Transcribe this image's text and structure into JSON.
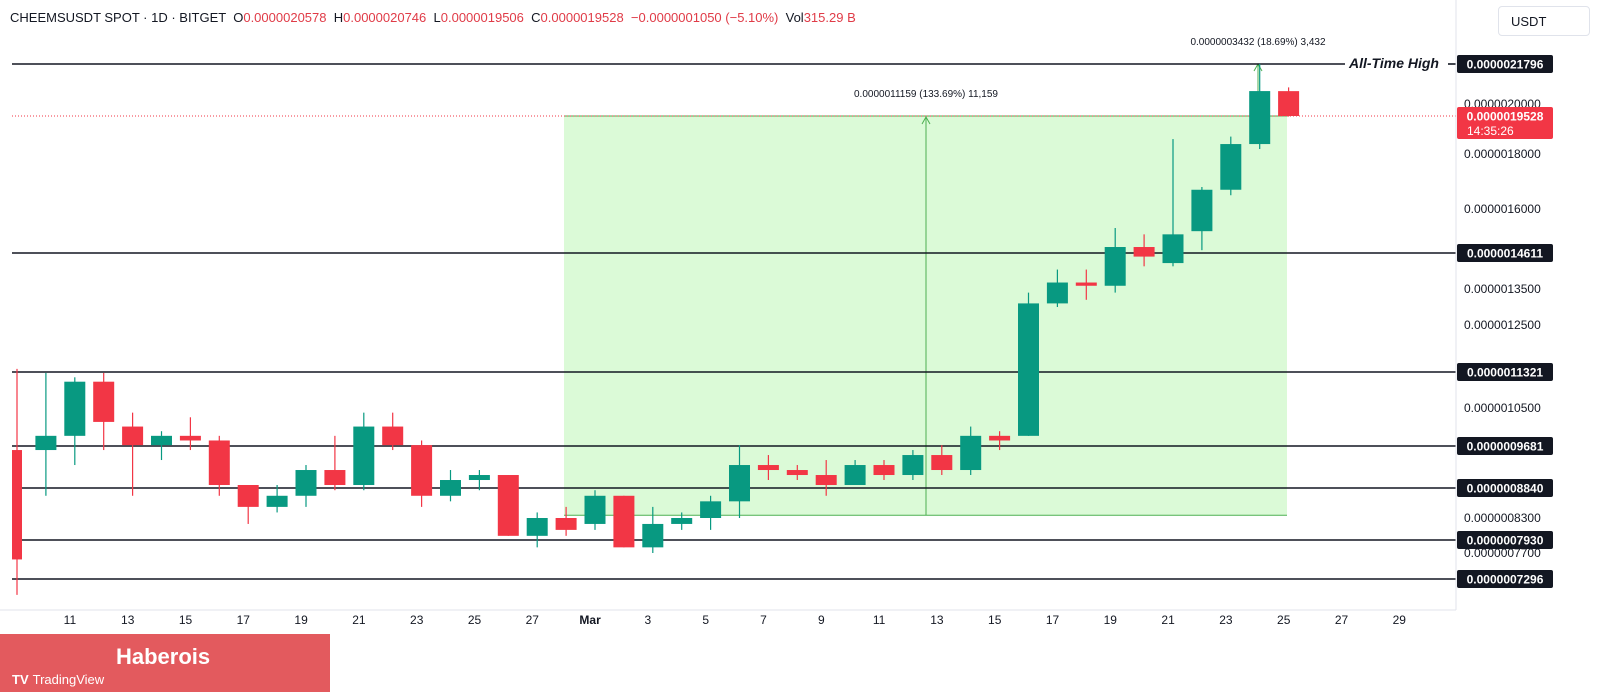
{
  "header": {
    "symbol": "CHEEMSUSDT SPOT · 1D · BITGET",
    "o_label": "O",
    "o_value": "0.0000020578",
    "h_label": "H",
    "h_value": "0.0000020746",
    "l_label": "L",
    "l_value": "0.0000019506",
    "c_label": "C",
    "c_value": "0.0000019528",
    "change": "−0.0000001050 (−5.10%)",
    "vol_label": "Vol",
    "vol_value": "315.29 B"
  },
  "unit_button": "USDT",
  "brand": {
    "name": "Haberois",
    "logo_text": "TradingView",
    "logo_mark": "TV"
  },
  "colors": {
    "up": "#089981",
    "down": "#f23645",
    "range_fill": "#d5f9d0",
    "range_line": "#4caf50"
  },
  "chart_data": {
    "type": "candlestick",
    "x_ticks": [
      "11",
      "13",
      "15",
      "17",
      "19",
      "21",
      "23",
      "25",
      "27",
      "Mar",
      "3",
      "5",
      "7",
      "9",
      "11",
      "13",
      "15",
      "17",
      "19",
      "21",
      "23",
      "25",
      "27",
      "29"
    ],
    "y_ticks": [
      "0.0000020000",
      "0.0000018000",
      "0.0000016000",
      "0.0000013500",
      "0.0000012500",
      "0.0000010500",
      "0.0000008300",
      "0.0000007700"
    ],
    "candles": [
      {
        "o": 9.6e-07,
        "h": 1.14e-06,
        "l": 7.1e-07,
        "c": 7.6e-07
      },
      {
        "o": 9.6e-07,
        "h": 1.13e-06,
        "l": 8.7e-07,
        "c": 9.9e-07
      },
      {
        "o": 9.9e-07,
        "h": 1.12e-06,
        "l": 9.3e-07,
        "c": 1.11e-06
      },
      {
        "o": 1.11e-06,
        "h": 1.13e-06,
        "l": 9.6e-07,
        "c": 1.02e-06
      },
      {
        "o": 1.01e-06,
        "h": 1.04e-06,
        "l": 8.7e-07,
        "c": 9.7e-07
      },
      {
        "o": 9.7e-07,
        "h": 1e-06,
        "l": 9.4e-07,
        "c": 9.9e-07
      },
      {
        "o": 9.9e-07,
        "h": 1.03e-06,
        "l": 9.6e-07,
        "c": 9.8e-07
      },
      {
        "o": 9.8e-07,
        "h": 9.9e-07,
        "l": 8.7e-07,
        "c": 8.9e-07
      },
      {
        "o": 8.9e-07,
        "h": 8.9e-07,
        "l": 8.2e-07,
        "c": 8.5e-07
      },
      {
        "o": 8.5e-07,
        "h": 8.9e-07,
        "l": 8.4e-07,
        "c": 8.7e-07
      },
      {
        "o": 8.7e-07,
        "h": 9.3e-07,
        "l": 8.5e-07,
        "c": 9.2e-07
      },
      {
        "o": 9.2e-07,
        "h": 9.9e-07,
        "l": 8.8e-07,
        "c": 8.9e-07
      },
      {
        "o": 8.9e-07,
        "h": 1.04e-06,
        "l": 8.8e-07,
        "c": 1.01e-06
      },
      {
        "o": 1.01e-06,
        "h": 1.04e-06,
        "l": 9.6e-07,
        "c": 9.7e-07
      },
      {
        "o": 9.7e-07,
        "h": 9.8e-07,
        "l": 8.5e-07,
        "c": 8.7e-07
      },
      {
        "o": 8.7e-07,
        "h": 9.2e-07,
        "l": 8.6e-07,
        "c": 9e-07
      },
      {
        "o": 9e-07,
        "h": 9.2e-07,
        "l": 8.8e-07,
        "c": 9.1e-07
      },
      {
        "o": 9.1e-07,
        "h": 9.1e-07,
        "l": 8e-07,
        "c": 8e-07
      },
      {
        "o": 8e-07,
        "h": 8.4e-07,
        "l": 7.8e-07,
        "c": 8.3e-07
      },
      {
        "o": 8.3e-07,
        "h": 8.5e-07,
        "l": 8e-07,
        "c": 8.1e-07
      },
      {
        "o": 8.2e-07,
        "h": 8.8e-07,
        "l": 8.1e-07,
        "c": 8.7e-07
      },
      {
        "o": 8.7e-07,
        "h": 8.7e-07,
        "l": 7.8e-07,
        "c": 7.8e-07
      },
      {
        "o": 7.8e-07,
        "h": 8.5e-07,
        "l": 7.7e-07,
        "c": 8.2e-07
      },
      {
        "o": 8.2e-07,
        "h": 8.4e-07,
        "l": 8.1e-07,
        "c": 8.3e-07
      },
      {
        "o": 8.3e-07,
        "h": 8.7e-07,
        "l": 8.1e-07,
        "c": 8.6e-07
      },
      {
        "o": 8.6e-07,
        "h": 9.7e-07,
        "l": 8.3e-07,
        "c": 9.3e-07
      },
      {
        "o": 9.3e-07,
        "h": 9.5e-07,
        "l": 9e-07,
        "c": 9.2e-07
      },
      {
        "o": 9.2e-07,
        "h": 9.3e-07,
        "l": 9e-07,
        "c": 9.1e-07
      },
      {
        "o": 9.1e-07,
        "h": 9.4e-07,
        "l": 8.7e-07,
        "c": 8.9e-07
      },
      {
        "o": 8.9e-07,
        "h": 9.4e-07,
        "l": 8.9e-07,
        "c": 9.3e-07
      },
      {
        "o": 9.3e-07,
        "h": 9.4e-07,
        "l": 9e-07,
        "c": 9.1e-07
      },
      {
        "o": 9.1e-07,
        "h": 9.6e-07,
        "l": 9e-07,
        "c": 9.5e-07
      },
      {
        "o": 9.5e-07,
        "h": 9.7e-07,
        "l": 9.1e-07,
        "c": 9.2e-07
      },
      {
        "o": 9.2e-07,
        "h": 1.01e-06,
        "l": 9.1e-07,
        "c": 9.9e-07
      },
      {
        "o": 9.9e-07,
        "h": 1e-06,
        "l": 9.6e-07,
        "c": 9.8e-07
      },
      {
        "o": 9.9e-07,
        "h": 1.34e-06,
        "l": 9.9e-07,
        "c": 1.31e-06
      },
      {
        "o": 1.31e-06,
        "h": 1.41e-06,
        "l": 1.3e-06,
        "c": 1.37e-06
      },
      {
        "o": 1.37e-06,
        "h": 1.41e-06,
        "l": 1.32e-06,
        "c": 1.36e-06
      },
      {
        "o": 1.36e-06,
        "h": 1.54e-06,
        "l": 1.34e-06,
        "c": 1.48e-06
      },
      {
        "o": 1.48e-06,
        "h": 1.52e-06,
        "l": 1.42e-06,
        "c": 1.45e-06
      },
      {
        "o": 1.43e-06,
        "h": 1.86e-06,
        "l": 1.42e-06,
        "c": 1.52e-06
      },
      {
        "o": 1.53e-06,
        "h": 1.68e-06,
        "l": 1.47e-06,
        "c": 1.67e-06
      },
      {
        "o": 1.67e-06,
        "h": 1.87e-06,
        "l": 1.65e-06,
        "c": 1.84e-06
      },
      {
        "o": 1.84e-06,
        "h": 2.18e-06,
        "l": 1.82e-06,
        "c": 2.058e-06
      },
      {
        "o": 2.0578e-06,
        "h": 2.0746e-06,
        "l": 1.9506e-06,
        "c": 1.9528e-06
      }
    ],
    "levels": [
      {
        "price": 2.1796e-06,
        "label": "0.0000021796"
      },
      {
        "price": 1.4611e-06,
        "label": "0.0000014611"
      },
      {
        "price": 1.1321e-06,
        "label": "0.0000011321"
      },
      {
        "price": 9.681e-07,
        "label": "0.0000009681"
      },
      {
        "price": 8.84e-07,
        "label": "0.0000008840"
      },
      {
        "price": 7.93e-07,
        "label": "0.0000007930"
      },
      {
        "price": 7.296e-07,
        "label": "0.0000007296"
      }
    ],
    "annotations": {
      "ath_label": "All-Time High",
      "range_main": "0.0000011159 (133.69%) 11,159",
      "range_top": "0.0000003432 (18.69%) 3,432"
    },
    "current_price": {
      "label": "0.0000019528",
      "countdown": "14:35:26"
    }
  }
}
